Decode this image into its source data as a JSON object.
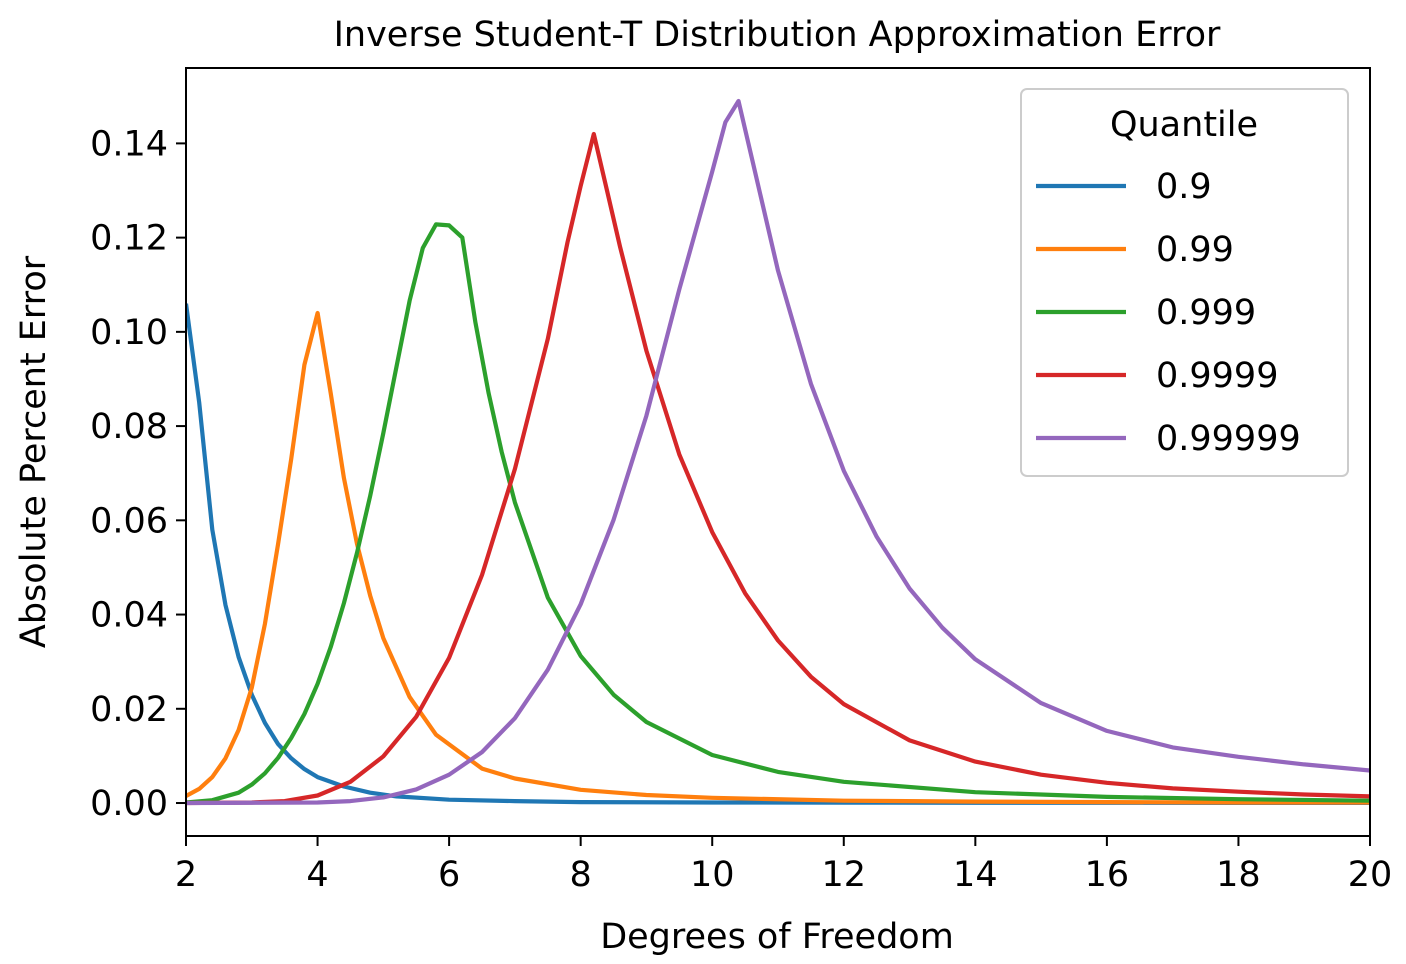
{
  "chart_data": {
    "type": "line",
    "title": "Inverse Student-T Distribution Approximation Error",
    "xlabel": "Degrees of Freedom",
    "ylabel": "Absolute Percent Error",
    "xlim": [
      2,
      20
    ],
    "ylim": [
      -0.007,
      0.156
    ],
    "xticks": [
      2,
      4,
      6,
      8,
      10,
      12,
      14,
      16,
      18,
      20
    ],
    "xtick_labels": [
      "2",
      "4",
      "6",
      "8",
      "10",
      "12",
      "14",
      "16",
      "18",
      "20"
    ],
    "yticks": [
      0.0,
      0.02,
      0.04,
      0.06,
      0.08,
      0.1,
      0.12,
      0.14
    ],
    "ytick_labels": [
      "0.00",
      "0.02",
      "0.04",
      "0.06",
      "0.08",
      "0.10",
      "0.12",
      "0.14"
    ],
    "grid": false,
    "legend": {
      "title": "Quantile",
      "placement": "top-right"
    },
    "series": [
      {
        "name": "0.9",
        "color": "#1f77b4",
        "x": [
          2.0,
          2.2,
          2.4,
          2.6,
          2.8,
          3.0,
          3.2,
          3.4,
          3.6,
          3.8,
          4.0,
          4.4,
          4.8,
          5.2,
          6.0,
          7.0,
          8.0,
          10.0,
          12.0,
          14.0,
          16.0,
          18.0,
          20.0
        ],
        "y": [
          0.106,
          0.085,
          0.058,
          0.042,
          0.031,
          0.023,
          0.017,
          0.0125,
          0.0095,
          0.0072,
          0.0055,
          0.0035,
          0.0022,
          0.0014,
          0.0007,
          0.0004,
          0.0002,
          0.00012,
          8e-05,
          5e-05,
          4e-05,
          3e-05,
          2e-05
        ]
      },
      {
        "name": "0.99",
        "color": "#ff7f0e",
        "x": [
          2.0,
          2.2,
          2.4,
          2.6,
          2.8,
          3.0,
          3.2,
          3.4,
          3.6,
          3.8,
          4.0,
          4.2,
          4.4,
          4.6,
          4.8,
          5.0,
          5.4,
          5.8,
          6.5,
          7.0,
          8.0,
          9.0,
          10.0,
          12.0,
          14.0,
          16.0,
          18.0,
          20.0
        ],
        "y": [
          0.0015,
          0.003,
          0.0055,
          0.0095,
          0.0155,
          0.0245,
          0.038,
          0.055,
          0.073,
          0.093,
          0.104,
          0.087,
          0.069,
          0.055,
          0.044,
          0.035,
          0.0225,
          0.0145,
          0.0073,
          0.0052,
          0.0028,
          0.0017,
          0.0011,
          0.0005,
          0.0003,
          0.0002,
          0.0001,
          0.0001
        ]
      },
      {
        "name": "0.999",
        "color": "#2ca02c",
        "x": [
          2.0,
          2.4,
          2.8,
          3.0,
          3.2,
          3.4,
          3.6,
          3.8,
          4.0,
          4.2,
          4.4,
          4.6,
          4.8,
          5.0,
          5.2,
          5.4,
          5.6,
          5.8,
          6.0,
          6.2,
          6.4,
          6.6,
          6.8,
          7.0,
          7.5,
          8.0,
          8.5,
          9.0,
          10.0,
          11.0,
          12.0,
          14.0,
          16.0,
          18.0,
          20.0
        ],
        "y": [
          0.0001,
          0.0006,
          0.0022,
          0.0039,
          0.0063,
          0.0096,
          0.0138,
          0.0189,
          0.0253,
          0.0331,
          0.0424,
          0.0531,
          0.0652,
          0.0785,
          0.0926,
          0.1066,
          0.1178,
          0.1228,
          0.1226,
          0.12,
          0.102,
          0.087,
          0.0745,
          0.0638,
          0.0436,
          0.0312,
          0.023,
          0.0172,
          0.0102,
          0.0066,
          0.0045,
          0.0023,
          0.0013,
          0.0008,
          0.0005
        ]
      },
      {
        "name": "0.9999",
        "color": "#d62728",
        "x": [
          2.0,
          3.0,
          3.5,
          4.0,
          4.5,
          5.0,
          5.5,
          6.0,
          6.5,
          7.0,
          7.5,
          7.8,
          8.0,
          8.2,
          8.4,
          8.6,
          9.0,
          9.5,
          10.0,
          10.5,
          11.0,
          11.5,
          12.0,
          13.0,
          14.0,
          15.0,
          16.0,
          17.0,
          18.0,
          19.0,
          20.0
        ],
        "y": [
          0.0,
          0.0001,
          0.0004,
          0.0016,
          0.0045,
          0.0099,
          0.0183,
          0.0308,
          0.0484,
          0.0709,
          0.0985,
          0.119,
          0.131,
          0.142,
          0.13,
          0.118,
          0.096,
          0.074,
          0.0575,
          0.0445,
          0.0345,
          0.0268,
          0.021,
          0.0133,
          0.0088,
          0.006,
          0.0043,
          0.0031,
          0.0024,
          0.0018,
          0.0014
        ]
      },
      {
        "name": "0.99999",
        "color": "#9467bd",
        "x": [
          2.0,
          4.0,
          4.5,
          5.0,
          5.5,
          6.0,
          6.5,
          7.0,
          7.5,
          8.0,
          8.5,
          9.0,
          9.5,
          10.0,
          10.2,
          10.4,
          10.6,
          11.0,
          11.5,
          12.0,
          12.5,
          13.0,
          13.5,
          14.0,
          15.0,
          16.0,
          17.0,
          18.0,
          19.0,
          20.0
        ],
        "y": [
          0.0,
          0.0001,
          0.0004,
          0.0012,
          0.0029,
          0.006,
          0.0108,
          0.018,
          0.0283,
          0.0422,
          0.0601,
          0.0822,
          0.109,
          0.134,
          0.1445,
          0.149,
          0.137,
          0.113,
          0.089,
          0.0705,
          0.0565,
          0.0455,
          0.0372,
          0.0305,
          0.0212,
          0.0153,
          0.0118,
          0.0098,
          0.0082,
          0.0069
        ]
      }
    ]
  }
}
